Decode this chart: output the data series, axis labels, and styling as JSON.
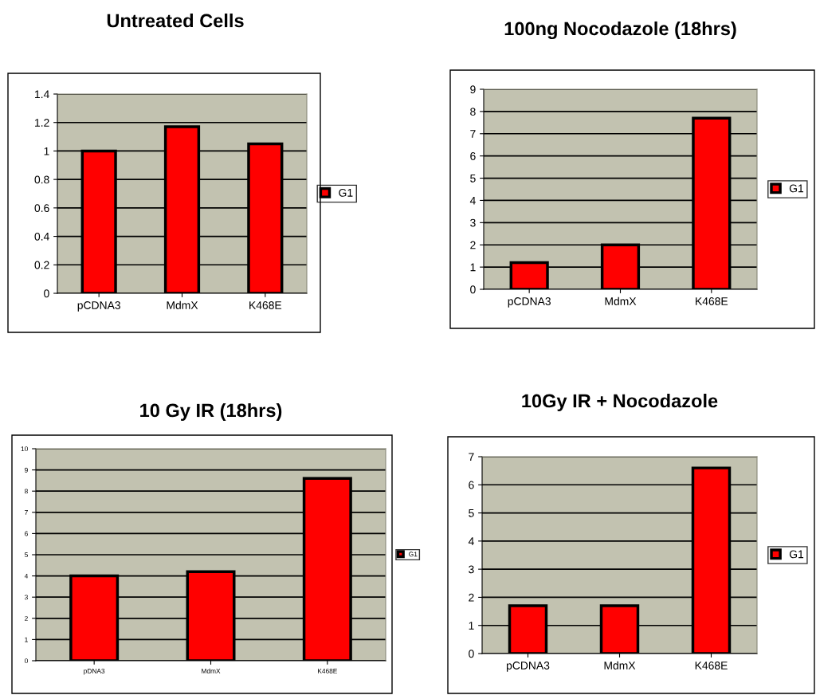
{
  "chart_data": [
    {
      "type": "bar",
      "title": "Untreated Cells",
      "categories": [
        "pCDNA3",
        "MdmX",
        "K468E"
      ],
      "series": [
        {
          "name": "G1",
          "color": "#ff0000",
          "values": [
            1.0,
            1.17,
            1.05
          ]
        }
      ],
      "ylim": [
        0,
        1.4
      ],
      "yticks": [
        0,
        0.2,
        0.4,
        0.6,
        0.8,
        1,
        1.2,
        1.4
      ],
      "grid": "y",
      "legend": "right"
    },
    {
      "type": "bar",
      "title": "100ng Nocodazole (18hrs)",
      "categories": [
        "pCDNA3",
        "MdmX",
        "K468E"
      ],
      "series": [
        {
          "name": "G1",
          "color": "#ff0000",
          "values": [
            1.2,
            2.0,
            7.7
          ]
        }
      ],
      "ylim": [
        0,
        9
      ],
      "yticks": [
        0,
        1,
        2,
        3,
        4,
        5,
        6,
        7,
        8,
        9
      ],
      "grid": "y",
      "legend": "right"
    },
    {
      "type": "bar",
      "title": "10 Gy IR (18hrs)",
      "categories": [
        "pDNA3",
        "MdmX",
        "K468E"
      ],
      "series": [
        {
          "name": "G1",
          "color": "#ff0000",
          "values": [
            4.0,
            4.2,
            8.6
          ]
        }
      ],
      "ylim": [
        0,
        10
      ],
      "yticks": [
        0,
        1,
        2,
        3,
        4,
        5,
        6,
        7,
        8,
        9,
        10
      ],
      "grid": "y",
      "legend": "right"
    },
    {
      "type": "bar",
      "title": "10Gy IR + Nocodazole",
      "categories": [
        "pCDNA3",
        "MdmX",
        "K468E"
      ],
      "series": [
        {
          "name": "G1",
          "color": "#ff0000",
          "values": [
            1.7,
            1.7,
            6.6
          ]
        }
      ],
      "ylim": [
        0,
        7
      ],
      "yticks": [
        0,
        1,
        2,
        3,
        4,
        5,
        6,
        7
      ],
      "grid": "y",
      "legend": "right"
    }
  ]
}
